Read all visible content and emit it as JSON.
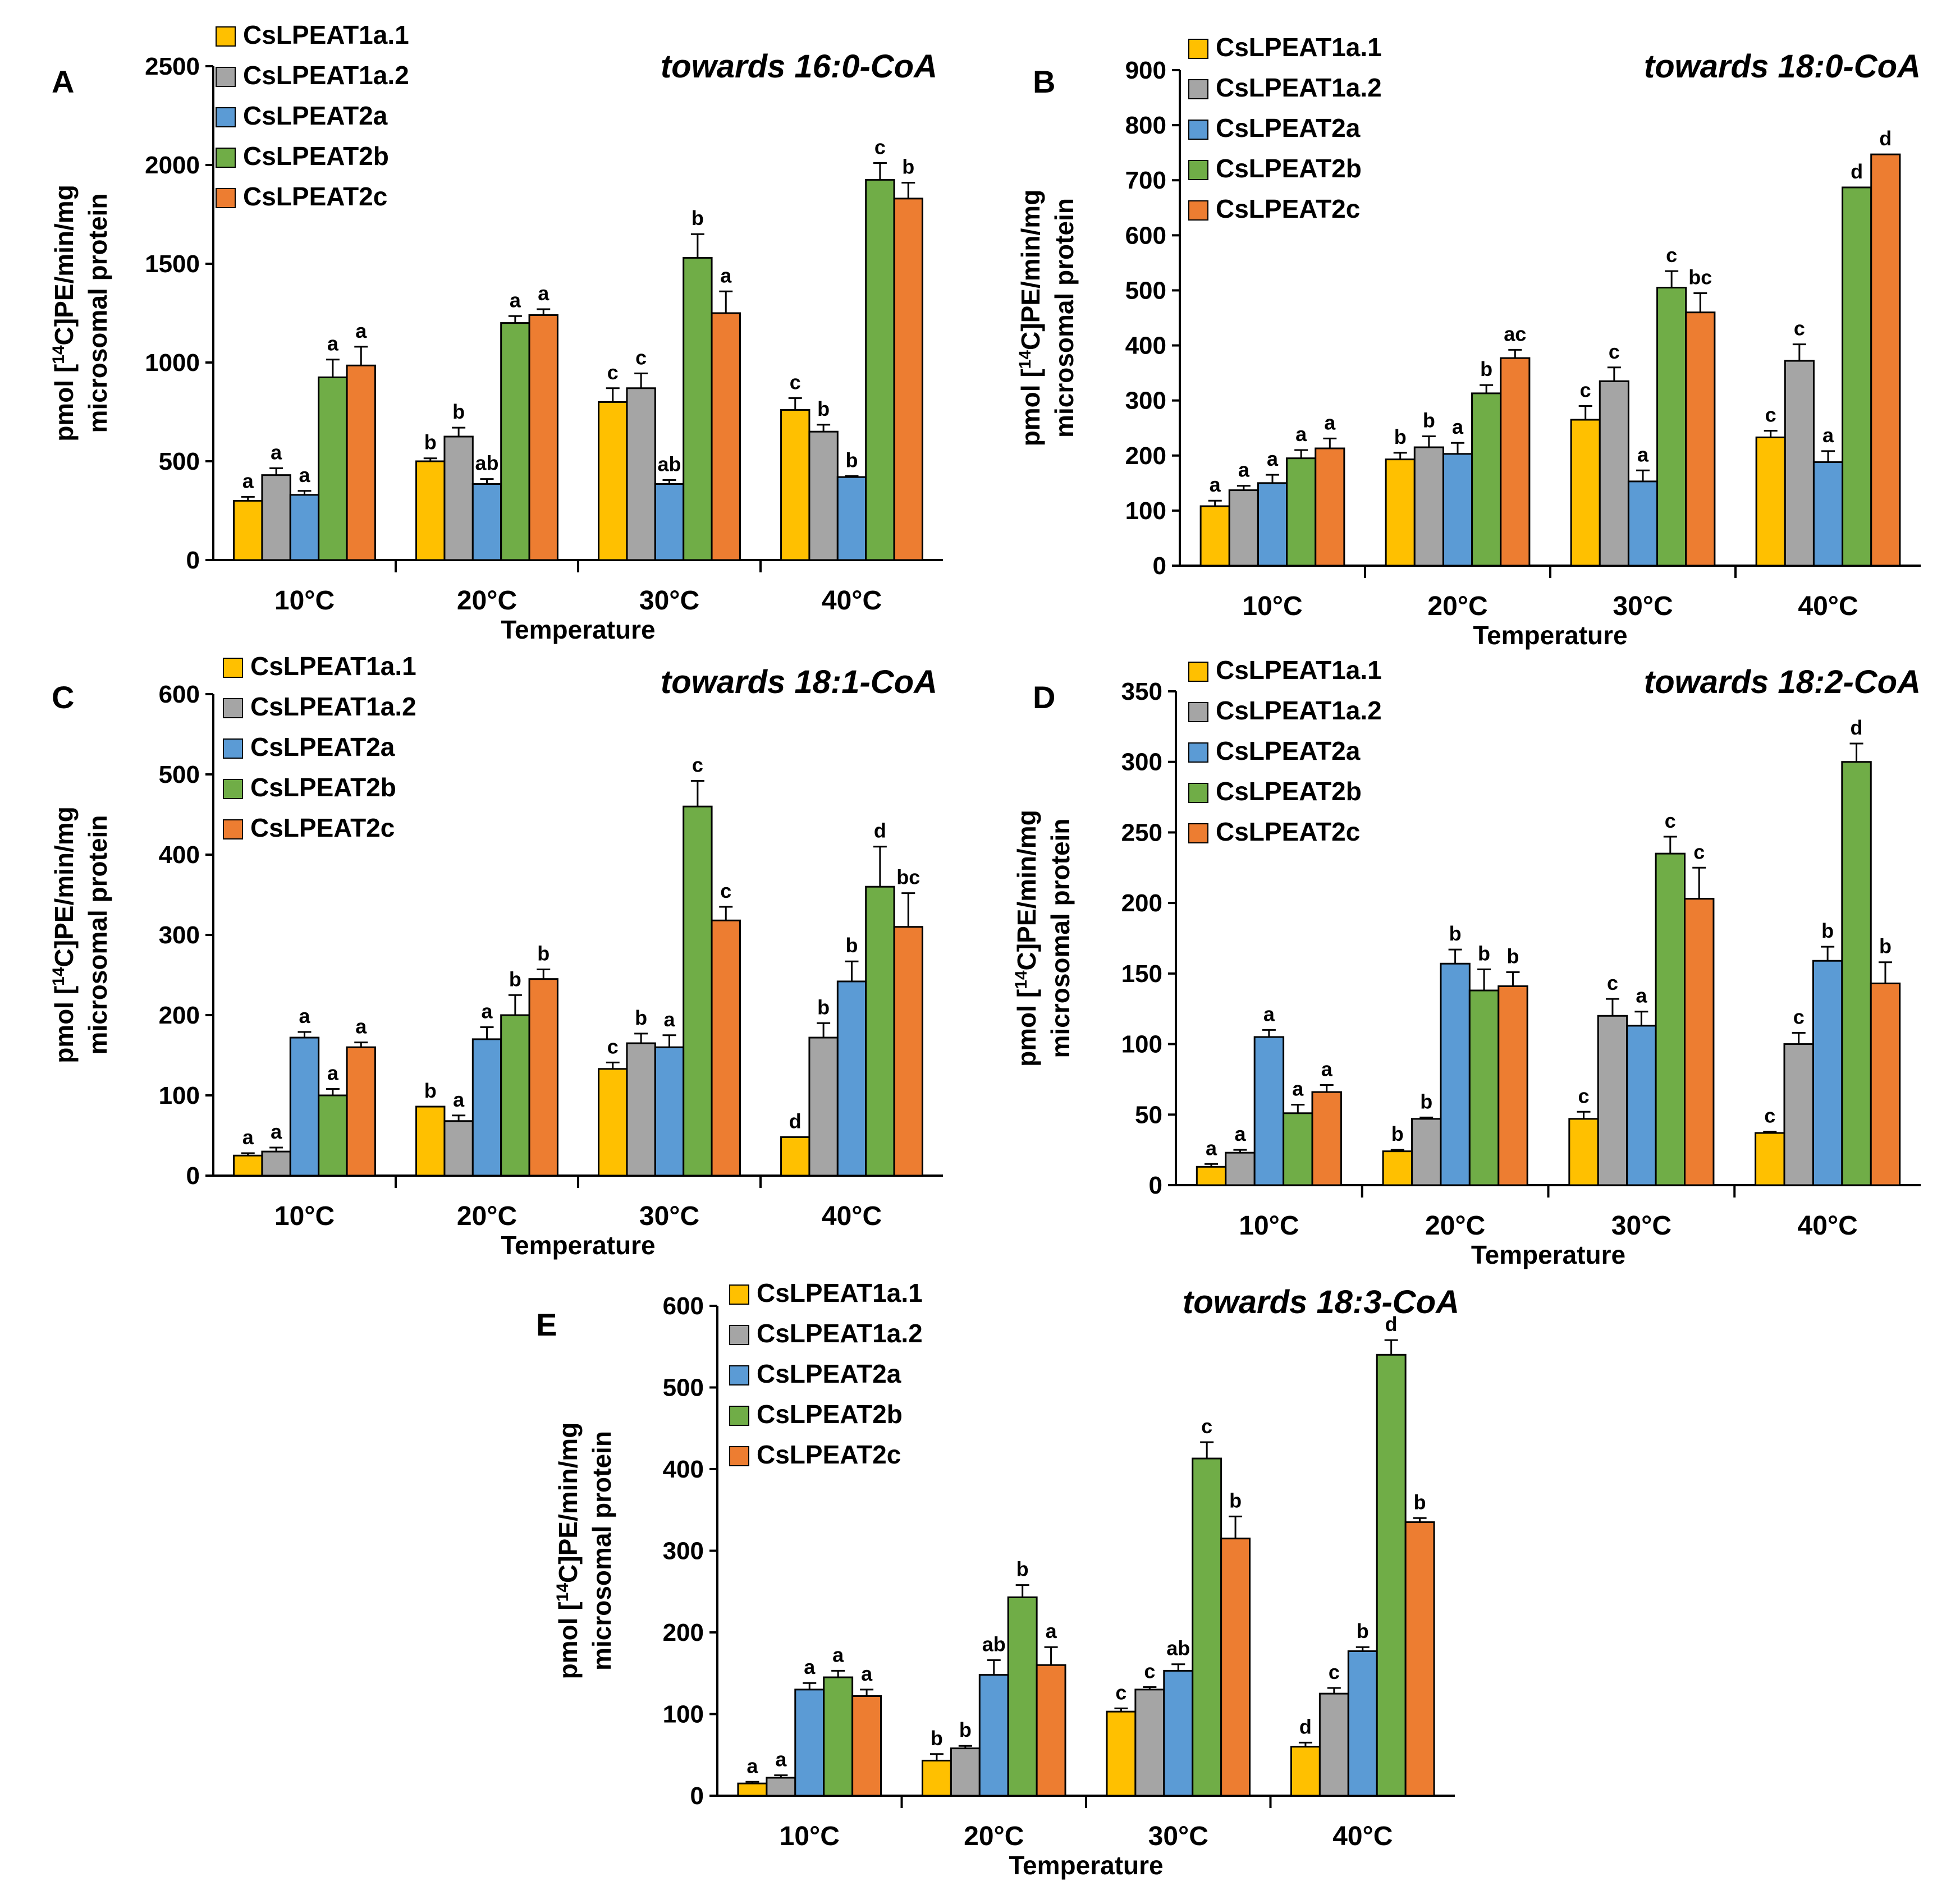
{
  "colors": {
    "CsLPEAT1a.1": "#FFC000",
    "CsLPEAT1a.2": "#A5A5A5",
    "CsLPEAT2a": "#5B9BD5",
    "CsLPEAT2b": "#70AD47",
    "CsLPEAT2c": "#ED7D31"
  },
  "chart_data": [
    {
      "panel": "A",
      "type": "bar",
      "title": "towards 16:0-CoA",
      "xlabel": "Temperature",
      "ylabel_line1": "pmol [14C]PE/min/mg",
      "ylabel_line2": "microsomal protein",
      "ylim": [
        0,
        2500
      ],
      "yticks": [
        "0",
        "500",
        "1000",
        "1500",
        "2000",
        "2500"
      ],
      "categories": [
        "10°C",
        "20°C",
        "30°C",
        "40°C"
      ],
      "series": [
        {
          "name": "CsLPEAT1a.1",
          "values": [
            300,
            500,
            800,
            760
          ],
          "errors": [
            20,
            15,
            70,
            60
          ],
          "labels": [
            "a",
            "b",
            "c",
            "c"
          ]
        },
        {
          "name": "CsLPEAT1a.2",
          "values": [
            430,
            625,
            870,
            650
          ],
          "errors": [
            35,
            45,
            75,
            35
          ],
          "labels": [
            "a",
            "b",
            "c",
            "b"
          ]
        },
        {
          "name": "CsLPEAT2a",
          "values": [
            330,
            385,
            385,
            420
          ],
          "errors": [
            20,
            25,
            20,
            5
          ],
          "labels": [
            "a",
            "ab",
            "ab",
            "b"
          ]
        },
        {
          "name": "CsLPEAT2b",
          "values": [
            925,
            1200,
            1530,
            1925
          ],
          "errors": [
            90,
            35,
            120,
            85
          ],
          "labels": [
            "a",
            "a",
            "b",
            "c"
          ]
        },
        {
          "name": "CsLPEAT2c",
          "values": [
            985,
            1240,
            1250,
            1830
          ],
          "errors": [
            95,
            30,
            110,
            80
          ],
          "labels": [
            "a",
            "a",
            "a",
            "b"
          ]
        }
      ]
    },
    {
      "panel": "B",
      "type": "bar",
      "title": "towards 18:0-CoA",
      "xlabel": "Temperature",
      "ylabel_line1": "pmol [14C]PE/min/mg",
      "ylabel_line2": "microsomal protein",
      "ylim": [
        0,
        900
      ],
      "yticks": [
        "0",
        "100",
        "200",
        "300",
        "400",
        "500",
        "600",
        "700",
        "800",
        "900"
      ],
      "categories": [
        "10°C",
        "20°C",
        "30°C",
        "40°C"
      ],
      "series": [
        {
          "name": "CsLPEAT1a.1",
          "values": [
            108,
            193,
            265,
            233
          ],
          "errors": [
            10,
            12,
            25,
            12
          ],
          "labels": [
            "a",
            "b",
            "c",
            "c"
          ]
        },
        {
          "name": "CsLPEAT1a.2",
          "values": [
            137,
            215,
            335,
            372
          ],
          "errors": [
            8,
            20,
            25,
            30
          ],
          "labels": [
            "a",
            "b",
            "c",
            "c"
          ]
        },
        {
          "name": "CsLPEAT2a",
          "values": [
            150,
            203,
            153,
            188
          ],
          "errors": [
            15,
            20,
            20,
            20
          ],
          "labels": [
            "a",
            "a",
            "a",
            "a"
          ]
        },
        {
          "name": "CsLPEAT2b",
          "values": [
            195,
            313,
            505,
            687
          ],
          "errors": [
            15,
            15,
            30,
            0
          ],
          "labels": [
            "a",
            "b",
            "c",
            "d"
          ]
        },
        {
          "name": "CsLPEAT2c",
          "values": [
            213,
            377,
            460,
            747
          ],
          "errors": [
            18,
            15,
            35,
            0
          ],
          "labels": [
            "a",
            "ac",
            "bc",
            "d"
          ]
        }
      ]
    },
    {
      "panel": "C",
      "type": "bar",
      "title": "towards 18:1-CoA",
      "xlabel": "Temperature",
      "ylabel_line1": "pmol [14C]PE/min/mg",
      "ylabel_line2": "microsomal protein",
      "ylim": [
        0,
        600
      ],
      "yticks": [
        "0",
        "100",
        "200",
        "300",
        "400",
        "500",
        "600"
      ],
      "categories": [
        "10°C",
        "20°C",
        "30°C",
        "40°C"
      ],
      "series": [
        {
          "name": "CsLPEAT1a.1",
          "values": [
            25,
            86,
            133,
            48
          ],
          "errors": [
            3,
            0,
            8,
            0
          ],
          "labels": [
            "a",
            "b",
            "c",
            "d"
          ]
        },
        {
          "name": "CsLPEAT1a.2",
          "values": [
            30,
            68,
            165,
            172
          ],
          "errors": [
            5,
            7,
            12,
            18
          ],
          "labels": [
            "a",
            "a",
            "b",
            "b"
          ]
        },
        {
          "name": "CsLPEAT2a",
          "values": [
            172,
            170,
            160,
            242
          ],
          "errors": [
            7,
            15,
            15,
            25
          ],
          "labels": [
            "a",
            "a",
            "a",
            "b"
          ]
        },
        {
          "name": "CsLPEAT2b",
          "values": [
            100,
            200,
            460,
            360
          ],
          "errors": [
            8,
            25,
            32,
            50
          ],
          "labels": [
            "a",
            "b",
            "c",
            "d"
          ]
        },
        {
          "name": "CsLPEAT2c",
          "values": [
            160,
            245,
            318,
            310
          ],
          "errors": [
            6,
            12,
            17,
            42
          ],
          "labels": [
            "a",
            "b",
            "c",
            "bc"
          ]
        }
      ]
    },
    {
      "panel": "D",
      "type": "bar",
      "title": "towards 18:2-CoA",
      "xlabel": "Temperature",
      "ylabel_line1": "pmol [14C]PE/min/mg",
      "ylabel_line2": "microsomal protein",
      "ylim": [
        0,
        350
      ],
      "yticks": [
        "0",
        "50",
        "100",
        "150",
        "200",
        "250",
        "300",
        "350"
      ],
      "categories": [
        "10°C",
        "20°C",
        "30°C",
        "40°C"
      ],
      "series": [
        {
          "name": "CsLPEAT1a.1",
          "values": [
            13,
            24,
            47,
            37
          ],
          "errors": [
            2,
            1,
            5,
            1
          ],
          "labels": [
            "a",
            "b",
            "c",
            "c"
          ]
        },
        {
          "name": "CsLPEAT1a.2",
          "values": [
            23,
            47,
            120,
            100
          ],
          "errors": [
            2,
            1,
            12,
            8
          ],
          "labels": [
            "a",
            "b",
            "c",
            "c"
          ]
        },
        {
          "name": "CsLPEAT2a",
          "values": [
            105,
            157,
            113,
            159
          ],
          "errors": [
            5,
            10,
            10,
            10
          ],
          "labels": [
            "a",
            "b",
            "a",
            "b"
          ]
        },
        {
          "name": "CsLPEAT2b",
          "values": [
            51,
            138,
            235,
            300
          ],
          "errors": [
            6,
            15,
            12,
            13
          ],
          "labels": [
            "a",
            "b",
            "c",
            "d"
          ]
        },
        {
          "name": "CsLPEAT2c",
          "values": [
            66,
            141,
            203,
            143
          ],
          "errors": [
            5,
            10,
            22,
            15
          ],
          "labels": [
            "a",
            "b",
            "c",
            "b"
          ]
        }
      ]
    },
    {
      "panel": "E",
      "type": "bar",
      "title": "towards 18:3-CoA",
      "xlabel": "Temperature",
      "ylabel_line1": "pmol [14C]PE/min/mg",
      "ylabel_line2": "microsomal protein",
      "ylim": [
        0,
        600
      ],
      "yticks": [
        "0",
        "100",
        "200",
        "300",
        "400",
        "500",
        "600"
      ],
      "categories": [
        "10°C",
        "20°C",
        "30°C",
        "40°C"
      ],
      "series": [
        {
          "name": "CsLPEAT1a.1",
          "values": [
            15,
            43,
            103,
            60
          ],
          "errors": [
            2,
            8,
            4,
            5
          ],
          "labels": [
            "a",
            "b",
            "c",
            "d"
          ]
        },
        {
          "name": "CsLPEAT1a.2",
          "values": [
            22,
            58,
            130,
            125
          ],
          "errors": [
            3,
            3,
            3,
            7
          ],
          "labels": [
            "a",
            "b",
            "c",
            "c"
          ]
        },
        {
          "name": "CsLPEAT2a",
          "values": [
            130,
            148,
            153,
            177
          ],
          "errors": [
            8,
            18,
            8,
            5
          ],
          "labels": [
            "a",
            "ab",
            "ab",
            "b"
          ]
        },
        {
          "name": "CsLPEAT2b",
          "values": [
            145,
            243,
            413,
            540
          ],
          "errors": [
            8,
            15,
            20,
            18
          ],
          "labels": [
            "a",
            "b",
            "c",
            "d"
          ]
        },
        {
          "name": "CsLPEAT2c",
          "values": [
            122,
            160,
            315,
            335
          ],
          "errors": [
            8,
            22,
            27,
            5
          ],
          "labels": [
            "a",
            "a",
            "b",
            "b"
          ]
        }
      ]
    }
  ]
}
